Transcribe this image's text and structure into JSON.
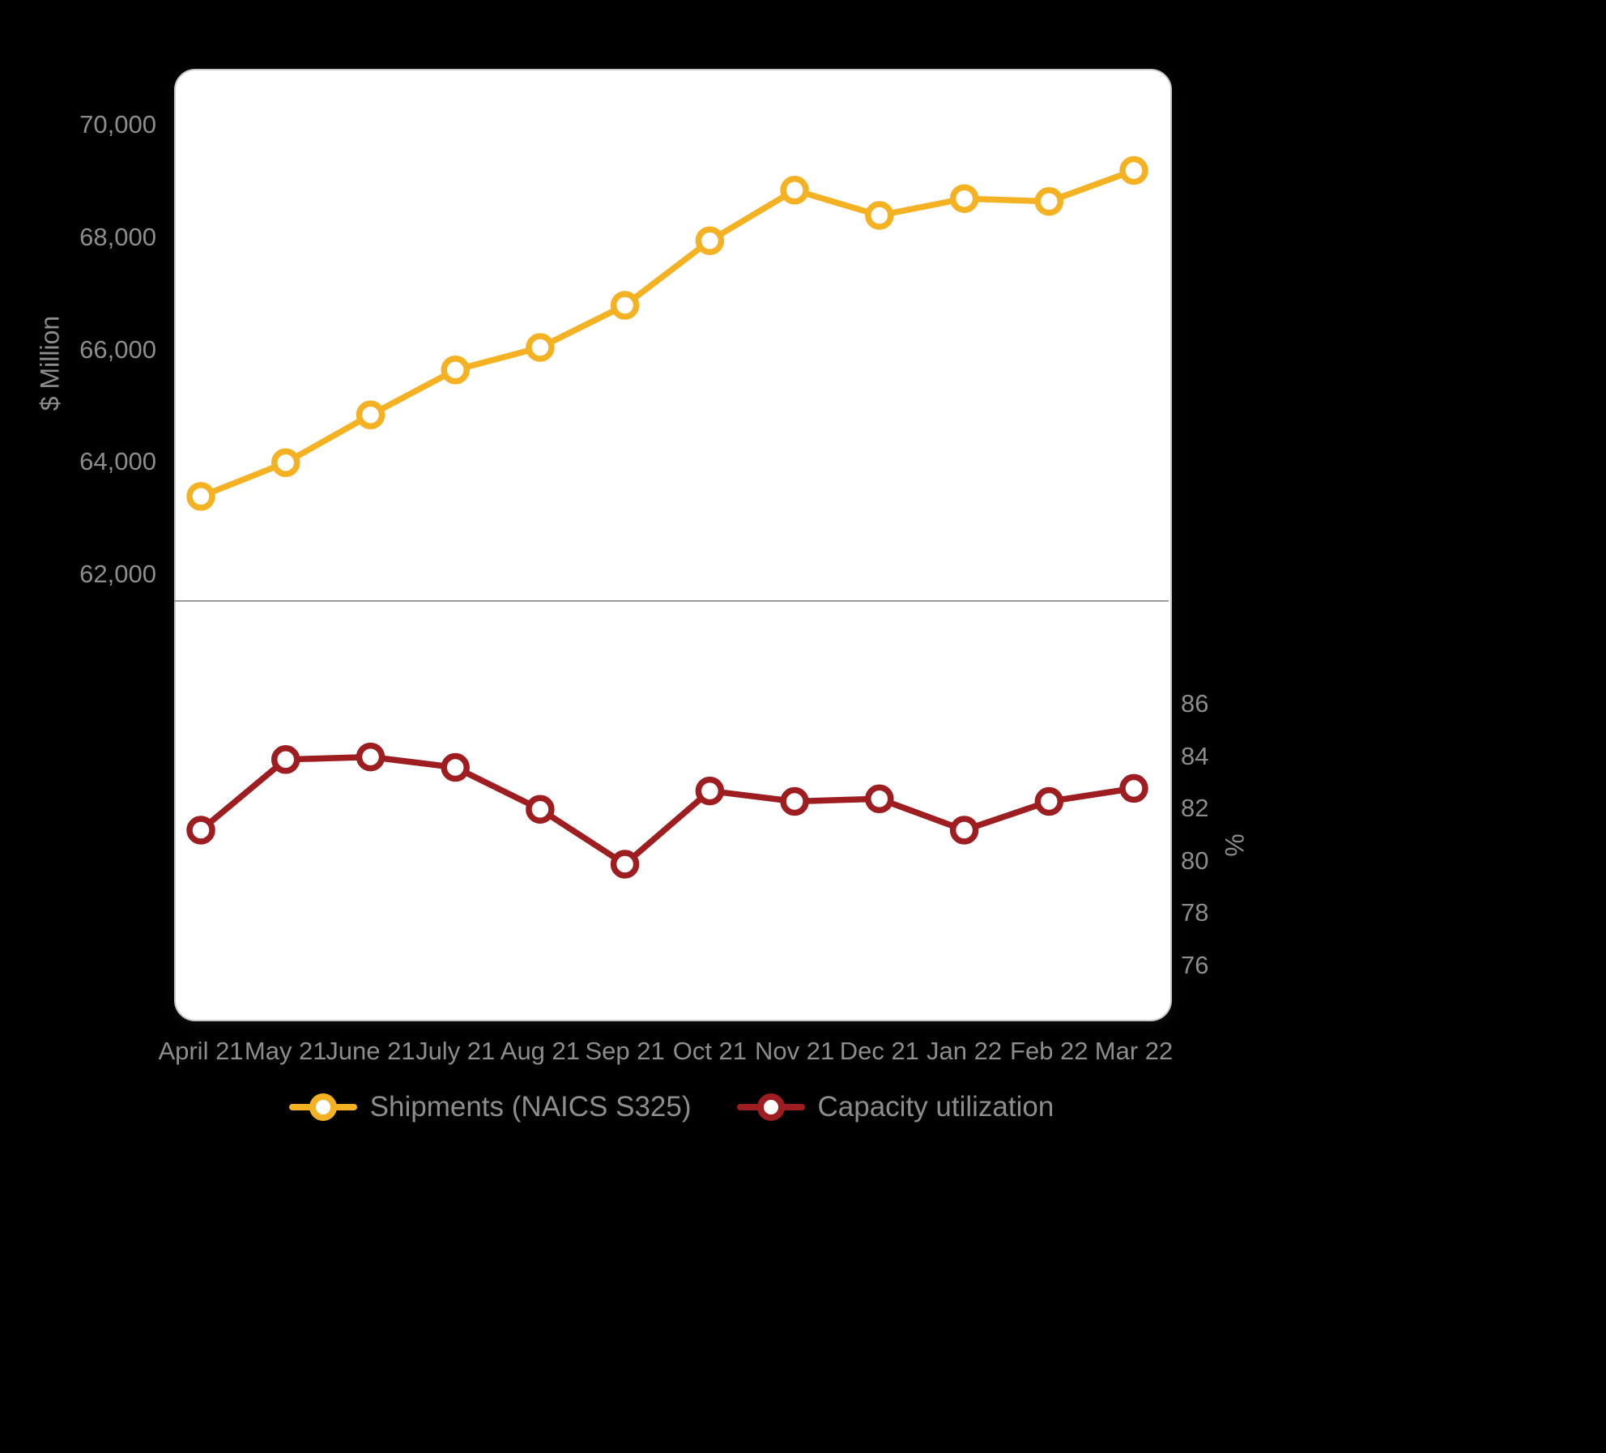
{
  "chart_data": {
    "type": "line",
    "x": [
      "April 21",
      "May 21",
      "June 21",
      "July 21",
      "Aug 21",
      "Sep 21",
      "Oct 21",
      "Nov 21",
      "Dec 21",
      "Jan 22",
      "Feb 22",
      "Mar 22"
    ],
    "panels": [
      {
        "name": "shipments-panel",
        "ylabel": "$ Million",
        "axis_side": "left",
        "ylim": [
          61500,
          70700
        ],
        "yticks": [
          62000,
          64000,
          66000,
          68000,
          70000
        ],
        "ytick_labels": [
          "62,000",
          "64,000",
          "66,000",
          "68,000",
          "70,000"
        ],
        "grid": false,
        "series": [
          {
            "name": "Shipments (NAICS S325)",
            "color": "#F4B223",
            "values": [
              63400,
              64000,
              64850,
              65650,
              66050,
              66800,
              67950,
              68850,
              68400,
              68700,
              68650,
              69200
            ]
          }
        ]
      },
      {
        "name": "capacity-utilization-panel",
        "ylabel": "%",
        "axis_side": "right",
        "ylim": [
          75,
          87
        ],
        "yticks": [
          76,
          78,
          80,
          82,
          84,
          86
        ],
        "ytick_labels": [
          "76",
          "78",
          "80",
          "82",
          "84",
          "86"
        ],
        "grid": false,
        "series": [
          {
            "name": "Capacity utilization",
            "color": "#9D1D20",
            "values": [
              81.2,
              83.9,
              84.0,
              83.6,
              82.0,
              79.9,
              82.7,
              82.3,
              82.4,
              81.2,
              82.3,
              82.8
            ]
          }
        ]
      }
    ],
    "legend": [
      {
        "label": "Shipments (NAICS S325)",
        "color": "#F4B223"
      },
      {
        "label": "Capacity utilization",
        "color": "#9D1D20"
      }
    ],
    "legend_position": "bottom-center"
  },
  "colors": {
    "background": "#000000",
    "panel": "#FFFFFF",
    "axis_text": "#8D8D8D",
    "shipments": "#F4B223",
    "capacity": "#9D1D20"
  }
}
